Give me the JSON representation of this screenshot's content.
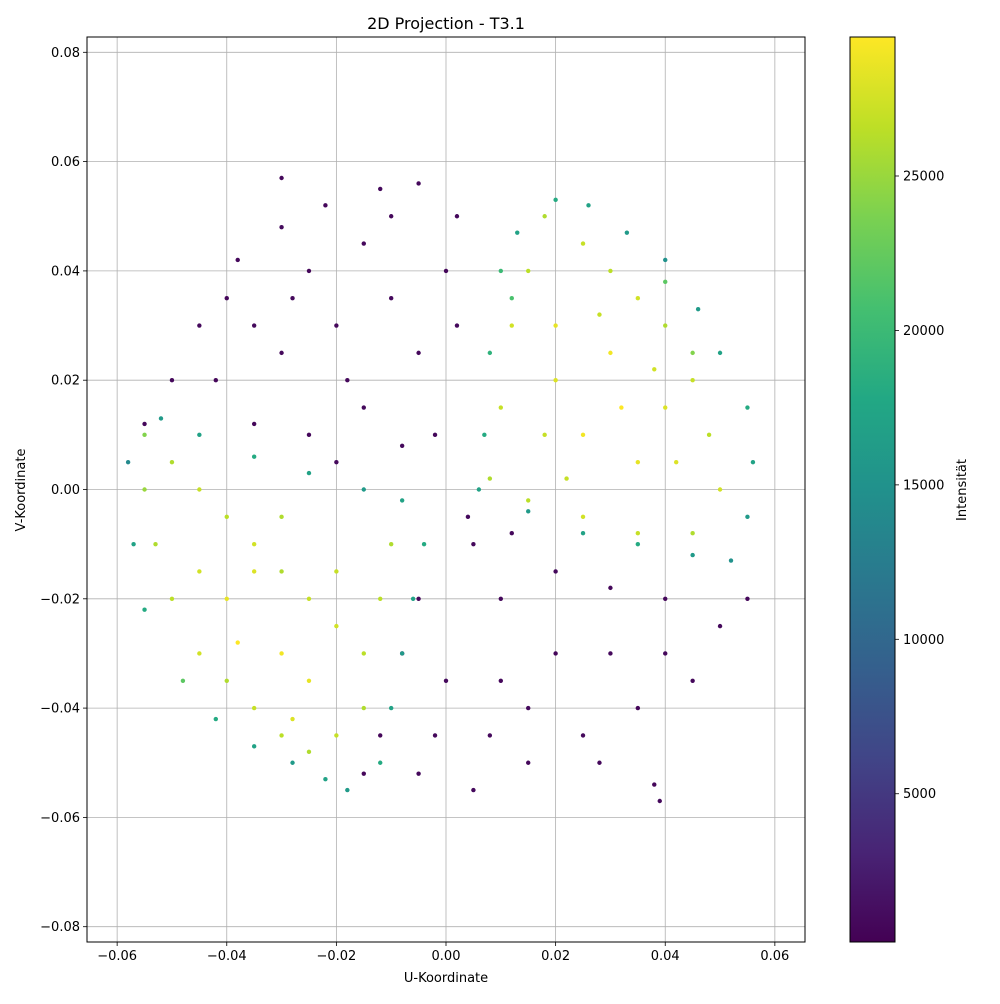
{
  "chart_data": {
    "type": "scatter",
    "title": "2D Projection - T3.1",
    "xlabel": "U-Koordinate",
    "ylabel": "V-Koordinate",
    "xlim": [
      -0.0655,
      0.0655
    ],
    "ylim": [
      -0.0828,
      0.0828
    ],
    "xticks": [
      -0.06,
      -0.04,
      -0.02,
      0.0,
      0.02,
      0.04,
      0.06
    ],
    "xtick_labels": [
      "−0.06",
      "−0.04",
      "−0.02",
      "0.00",
      "0.02",
      "0.04",
      "0.06"
    ],
    "yticks": [
      -0.08,
      -0.06,
      -0.04,
      -0.02,
      0.0,
      0.02,
      0.04,
      0.06,
      0.08
    ],
    "ytick_labels": [
      "−0.08",
      "−0.06",
      "−0.04",
      "−0.02",
      "0.00",
      "0.02",
      "0.04",
      "0.06",
      "0.08"
    ],
    "grid": true,
    "colormap": "viridis",
    "colorbar": {
      "label": "Intensität",
      "range": [
        200,
        29500
      ],
      "ticks": [
        5000,
        10000,
        15000,
        20000,
        25000
      ],
      "tick_labels": [
        "5000",
        "10000",
        "15000",
        "20000",
        "25000"
      ]
    },
    "points": [
      [
        -0.045,
        0.03,
        900
      ],
      [
        -0.038,
        0.042,
        800
      ],
      [
        -0.03,
        0.048,
        1000
      ],
      [
        -0.022,
        0.052,
        700
      ],
      [
        -0.012,
        0.055,
        900
      ],
      [
        -0.005,
        0.056,
        800
      ],
      [
        0.002,
        0.05,
        900
      ],
      [
        -0.025,
        0.04,
        700
      ],
      [
        -0.015,
        0.045,
        800
      ],
      [
        -0.035,
        0.03,
        900
      ],
      [
        -0.05,
        0.02,
        800
      ],
      [
        -0.042,
        0.02,
        700
      ],
      [
        -0.03,
        0.025,
        900
      ],
      [
        -0.02,
        0.03,
        800
      ],
      [
        -0.01,
        0.035,
        900
      ],
      [
        0.0,
        0.04,
        700
      ],
      [
        -0.005,
        0.025,
        800
      ],
      [
        -0.015,
        0.015,
        900
      ],
      [
        -0.025,
        0.01,
        800
      ],
      [
        -0.035,
        0.012,
        700
      ],
      [
        -0.008,
        0.008,
        900
      ],
      [
        -0.002,
        0.01,
        800
      ],
      [
        0.002,
        0.03,
        900
      ],
      [
        -0.018,
        0.02,
        800
      ],
      [
        -0.04,
        0.035,
        700
      ],
      [
        -0.028,
        0.035,
        900
      ],
      [
        -0.01,
        0.05,
        800
      ],
      [
        -0.02,
        0.005,
        900
      ],
      [
        -0.03,
        0.057,
        800
      ],
      [
        -0.055,
        0.012,
        700
      ],
      [
        0.005,
        -0.01,
        900
      ],
      [
        0.01,
        -0.02,
        800
      ],
      [
        0.02,
        -0.015,
        900
      ],
      [
        0.03,
        -0.018,
        700
      ],
      [
        0.04,
        -0.02,
        800
      ],
      [
        0.05,
        -0.025,
        900
      ],
      [
        0.045,
        -0.035,
        800
      ],
      [
        0.035,
        -0.04,
        700
      ],
      [
        0.025,
        -0.045,
        900
      ],
      [
        0.015,
        -0.05,
        800
      ],
      [
        0.005,
        -0.055,
        900
      ],
      [
        -0.005,
        -0.052,
        800
      ],
      [
        -0.012,
        -0.045,
        700
      ],
      [
        -0.008,
        -0.03,
        900
      ],
      [
        -0.005,
        -0.02,
        800
      ],
      [
        0.0,
        -0.035,
        900
      ],
      [
        0.01,
        -0.035,
        800
      ],
      [
        0.02,
        -0.03,
        700
      ],
      [
        0.03,
        -0.03,
        900
      ],
      [
        0.04,
        -0.03,
        800
      ],
      [
        0.015,
        -0.04,
        900
      ],
      [
        0.028,
        -0.05,
        800
      ],
      [
        0.038,
        -0.054,
        700
      ],
      [
        0.039,
        -0.057,
        900
      ],
      [
        -0.002,
        -0.045,
        800
      ],
      [
        0.008,
        -0.045,
        900
      ],
      [
        0.055,
        -0.02,
        800
      ],
      [
        -0.015,
        -0.052,
        700
      ],
      [
        0.004,
        -0.005,
        900
      ],
      [
        0.012,
        -0.008,
        800
      ],
      [
        0.018,
        0.05,
        26000
      ],
      [
        0.025,
        0.045,
        27000
      ],
      [
        0.03,
        0.04,
        26500
      ],
      [
        0.035,
        0.035,
        27500
      ],
      [
        0.04,
        0.03,
        26000
      ],
      [
        0.045,
        0.02,
        27000
      ],
      [
        0.048,
        0.01,
        26500
      ],
      [
        0.05,
        0.0,
        27500
      ],
      [
        0.045,
        -0.008,
        26000
      ],
      [
        0.035,
        -0.008,
        27000
      ],
      [
        0.025,
        -0.005,
        27500
      ],
      [
        0.015,
        -0.002,
        26500
      ],
      [
        0.008,
        0.002,
        26000
      ],
      [
        0.01,
        0.015,
        27000
      ],
      [
        0.012,
        0.03,
        27500
      ],
      [
        0.015,
        0.04,
        26500
      ],
      [
        0.02,
        0.03,
        28500
      ],
      [
        0.03,
        0.025,
        29000
      ],
      [
        0.04,
        0.015,
        28000
      ],
      [
        0.035,
        0.005,
        28500
      ],
      [
        0.025,
        0.01,
        29000
      ],
      [
        0.02,
        0.02,
        28000
      ],
      [
        0.028,
        0.032,
        27000
      ],
      [
        0.038,
        0.022,
        27500
      ],
      [
        0.022,
        0.002,
        27000
      ],
      [
        0.042,
        0.005,
        28000
      ],
      [
        0.032,
        0.015,
        29500
      ],
      [
        0.018,
        0.01,
        27000
      ],
      [
        0.045,
        0.025,
        24000
      ],
      [
        0.04,
        0.038,
        22000
      ],
      [
        0.02,
        0.053,
        18000
      ],
      [
        0.013,
        0.047,
        17000
      ],
      [
        0.01,
        0.04,
        20000
      ],
      [
        0.008,
        0.025,
        19000
      ],
      [
        0.007,
        0.01,
        18000
      ],
      [
        0.006,
        0.0,
        17000
      ],
      [
        0.015,
        -0.004,
        16000
      ],
      [
        0.025,
        -0.008,
        17000
      ],
      [
        0.035,
        -0.01,
        18000
      ],
      [
        0.045,
        -0.012,
        16000
      ],
      [
        0.052,
        -0.013,
        15000
      ],
      [
        0.055,
        -0.005,
        16000
      ],
      [
        0.056,
        0.005,
        17000
      ],
      [
        0.055,
        0.015,
        18000
      ],
      [
        0.05,
        0.025,
        17000
      ],
      [
        0.046,
        0.033,
        16000
      ],
      [
        0.04,
        0.042,
        15000
      ],
      [
        0.033,
        0.047,
        16000
      ],
      [
        0.026,
        0.052,
        17000
      ],
      [
        0.012,
        0.035,
        21000
      ],
      [
        -0.055,
        0.01,
        24000
      ],
      [
        -0.05,
        0.005,
        26000
      ],
      [
        -0.045,
        0.0,
        27000
      ],
      [
        -0.04,
        -0.005,
        26500
      ],
      [
        -0.035,
        -0.01,
        27500
      ],
      [
        -0.03,
        -0.015,
        26000
      ],
      [
        -0.025,
        -0.02,
        27000
      ],
      [
        -0.02,
        -0.025,
        27500
      ],
      [
        -0.015,
        -0.03,
        26500
      ],
      [
        -0.015,
        -0.04,
        26000
      ],
      [
        -0.02,
        -0.045,
        27000
      ],
      [
        -0.025,
        -0.048,
        26000
      ],
      [
        -0.03,
        -0.045,
        26500
      ],
      [
        -0.035,
        -0.04,
        27000
      ],
      [
        -0.04,
        -0.035,
        26000
      ],
      [
        -0.045,
        -0.03,
        27500
      ],
      [
        -0.05,
        -0.02,
        26500
      ],
      [
        -0.053,
        -0.01,
        26000
      ],
      [
        -0.055,
        0.0,
        25000
      ],
      [
        -0.04,
        -0.02,
        28500
      ],
      [
        -0.03,
        -0.03,
        29000
      ],
      [
        -0.035,
        -0.015,
        28000
      ],
      [
        -0.025,
        -0.035,
        28500
      ],
      [
        -0.02,
        -0.015,
        27000
      ],
      [
        -0.01,
        -0.01,
        26000
      ],
      [
        -0.012,
        -0.02,
        26500
      ],
      [
        -0.045,
        -0.015,
        27500
      ],
      [
        -0.03,
        -0.005,
        26000
      ],
      [
        -0.038,
        -0.028,
        29500
      ],
      [
        -0.028,
        -0.042,
        28000
      ],
      [
        -0.048,
        -0.035,
        22000
      ],
      [
        -0.042,
        -0.042,
        18000
      ],
      [
        -0.035,
        -0.047,
        17000
      ],
      [
        -0.028,
        -0.05,
        16000
      ],
      [
        -0.022,
        -0.053,
        17000
      ],
      [
        -0.018,
        -0.055,
        16000
      ],
      [
        -0.012,
        -0.05,
        18000
      ],
      [
        -0.01,
        -0.04,
        17000
      ],
      [
        -0.008,
        -0.03,
        16000
      ],
      [
        -0.006,
        -0.02,
        17000
      ],
      [
        -0.004,
        -0.01,
        18000
      ],
      [
        -0.008,
        -0.002,
        17000
      ],
      [
        -0.015,
        0.0,
        16000
      ],
      [
        -0.025,
        0.003,
        17000
      ],
      [
        -0.035,
        0.006,
        18000
      ],
      [
        -0.045,
        0.01,
        17000
      ],
      [
        -0.052,
        0.013,
        16000
      ],
      [
        -0.058,
        0.005,
        14000
      ],
      [
        -0.057,
        -0.01,
        17000
      ],
      [
        -0.055,
        -0.022,
        18000
      ]
    ]
  }
}
